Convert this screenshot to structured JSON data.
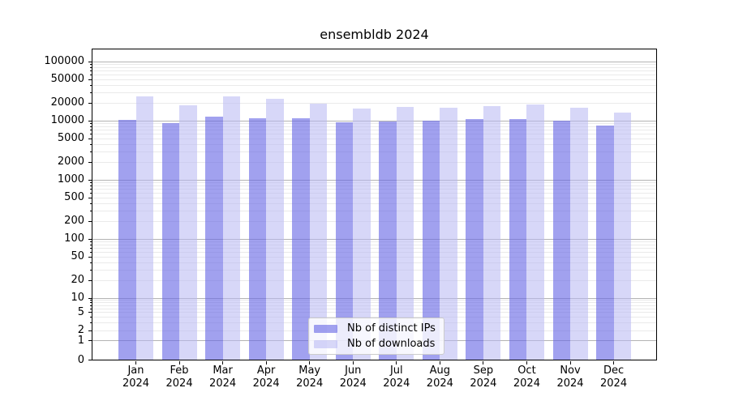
{
  "chart_data": {
    "type": "bar",
    "title": "ensembldb 2024",
    "categories": [
      "Jan 2024",
      "Feb 2024",
      "Mar 2024",
      "Apr 2024",
      "May 2024",
      "Jun 2024",
      "Jul 2024",
      "Aug 2024",
      "Sep 2024",
      "Oct 2024",
      "Nov 2024",
      "Dec 2024"
    ],
    "series": [
      {
        "name": "Nb of distinct IPs",
        "color": "rgba(104,104,229,0.62)",
        "values": [
          10300,
          9000,
          11700,
          10900,
          10900,
          9400,
          9600,
          10000,
          10600,
          10600,
          9900,
          8300
        ]
      },
      {
        "name": "Nb of downloads",
        "color": "rgba(182,182,243,0.55)",
        "values": [
          25400,
          18300,
          25300,
          23300,
          19400,
          16200,
          16900,
          16600,
          17500,
          18400,
          16600,
          13700
        ]
      }
    ],
    "yscale": "log (symlog-like, with 0 at baseline)",
    "ylabel": "",
    "xlabel": "",
    "y_tick_labels": [
      "100000",
      "50000",
      "20000",
      "10000",
      "5000",
      "2000",
      "1000",
      "500",
      "200",
      "100",
      "50",
      "20",
      "10",
      "5",
      "2",
      "1",
      "0"
    ],
    "y_tick_values": [
      100000,
      50000,
      20000,
      10000,
      5000,
      2000,
      1000,
      500,
      200,
      100,
      50,
      20,
      10,
      5,
      2,
      1,
      0
    ],
    "grid": {
      "visible": true,
      "major_color": "#b3b3b3",
      "minor_color": "#eaeaea"
    },
    "legend": {
      "position": "lower center inside plot",
      "items": [
        "Nb of distinct IPs",
        "Nb of downloads"
      ]
    },
    "colors": {
      "axis_spine": "#000000",
      "text": "#000000",
      "background": "#ffffff"
    }
  }
}
